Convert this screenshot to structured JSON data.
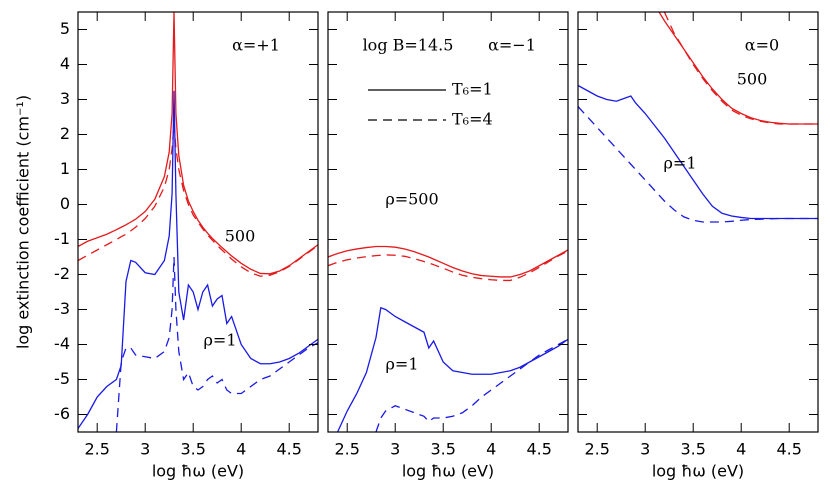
{
  "chart_data": [
    {
      "type": "line",
      "ylabel": "log extinction coefficient (cm⁻¹)",
      "xlabel": "log ħω (eV)",
      "xlim": [
        2.3,
        4.8
      ],
      "ylim": [
        -6.5,
        5.5
      ],
      "xticks": [
        2.5,
        3,
        3.5,
        4,
        4.5
      ],
      "yticks": [
        -6,
        -5,
        -4,
        -3,
        -2,
        -1,
        0,
        1,
        2,
        3,
        4,
        5
      ],
      "annotations": [
        "α=+1",
        "500",
        "ρ=1"
      ],
      "x": [
        2.3,
        2.4,
        2.5,
        2.6,
        2.7,
        2.75,
        2.8,
        2.85,
        2.9,
        3.0,
        3.1,
        3.2,
        3.25,
        3.28,
        3.3,
        3.32,
        3.35,
        3.4,
        3.45,
        3.5,
        3.55,
        3.6,
        3.65,
        3.7,
        3.75,
        3.8,
        3.85,
        3.9,
        4.0,
        4.1,
        4.2,
        4.3,
        4.4,
        4.5,
        4.6,
        4.7,
        4.8
      ],
      "series": [
        {
          "color": "#e41a1c",
          "dash": false,
          "values": [
            -1.2,
            -1.05,
            -0.95,
            -0.85,
            -0.72,
            -0.65,
            -0.58,
            -0.5,
            -0.42,
            -0.2,
            0.15,
            0.8,
            1.5,
            2.6,
            5.5,
            2.6,
            1.4,
            0.55,
            0.1,
            -0.2,
            -0.45,
            -0.65,
            -0.82,
            -0.97,
            -1.1,
            -1.23,
            -1.35,
            -1.47,
            -1.68,
            -1.85,
            -1.97,
            -1.98,
            -1.9,
            -1.75,
            -1.55,
            -1.35,
            -1.15
          ]
        },
        {
          "color": "#e41a1c",
          "dash": true,
          "values": [
            -1.6,
            -1.45,
            -1.3,
            -1.15,
            -1.0,
            -0.92,
            -0.85,
            -0.75,
            -0.65,
            -0.4,
            -0.05,
            0.5,
            1.0,
            1.6,
            2.3,
            1.6,
            1.0,
            0.4,
            0.0,
            -0.3,
            -0.5,
            -0.7,
            -0.87,
            -1.02,
            -1.17,
            -1.3,
            -1.43,
            -1.56,
            -1.78,
            -1.95,
            -2.05,
            -2.02,
            -1.92,
            -1.77,
            -1.57,
            -1.37,
            -1.17
          ]
        },
        {
          "color": "#1a1ae6",
          "dash": false,
          "values": [
            -6.4,
            -6.0,
            -5.5,
            -5.2,
            -5.0,
            -4.6,
            -2.2,
            -1.6,
            -1.65,
            -1.95,
            -2.0,
            -1.6,
            -0.9,
            0.3,
            3.25,
            0.3,
            -2.5,
            -3.3,
            -2.3,
            -2.5,
            -3.0,
            -2.5,
            -2.3,
            -2.9,
            -2.7,
            -2.6,
            -3.4,
            -3.2,
            -4.0,
            -4.4,
            -4.55,
            -4.55,
            -4.5,
            -4.4,
            -4.25,
            -4.05,
            -3.85
          ]
        },
        {
          "color": "#1a1ae6",
          "dash": true,
          "values": [
            null,
            null,
            null,
            null,
            -6.5,
            -4.5,
            -4.1,
            -4.1,
            -4.3,
            -4.35,
            -4.4,
            -4.2,
            -3.8,
            -3.0,
            -1.5,
            -3.0,
            -4.2,
            -5.0,
            -4.8,
            -5.2,
            -5.3,
            -5.2,
            -5.0,
            -4.9,
            -5.1,
            -5.0,
            -5.3,
            -5.4,
            -5.4,
            -5.2,
            -5.0,
            -4.9,
            -4.7,
            -4.5,
            -4.3,
            -4.1,
            -3.95
          ]
        }
      ]
    },
    {
      "type": "line",
      "xlabel": "log ħω (eV)",
      "xlim": [
        2.3,
        4.8
      ],
      "ylim": [
        -6.5,
        5.5
      ],
      "xticks": [
        2.5,
        3,
        3.5,
        4,
        4.5
      ],
      "annotations": [
        "log B=14.5",
        "α=−1",
        "ρ=500",
        "ρ=1"
      ],
      "legend": [
        {
          "label": "T₆=1",
          "dash": false
        },
        {
          "label": "T₆=4",
          "dash": true
        }
      ],
      "x": [
        2.3,
        2.4,
        2.5,
        2.6,
        2.7,
        2.8,
        2.85,
        2.9,
        3.0,
        3.1,
        3.2,
        3.3,
        3.35,
        3.4,
        3.5,
        3.6,
        3.7,
        3.8,
        3.9,
        4.0,
        4.1,
        4.2,
        4.3,
        4.4,
        4.5,
        4.6,
        4.7,
        4.8
      ],
      "series": [
        {
          "color": "#e41a1c",
          "dash": false,
          "values": [
            -1.5,
            -1.4,
            -1.32,
            -1.27,
            -1.23,
            -1.2,
            -1.2,
            -1.2,
            -1.22,
            -1.27,
            -1.35,
            -1.45,
            -1.5,
            -1.56,
            -1.68,
            -1.8,
            -1.9,
            -1.98,
            -2.03,
            -2.05,
            -2.07,
            -2.07,
            -2.0,
            -1.9,
            -1.75,
            -1.6,
            -1.45,
            -1.3
          ]
        },
        {
          "color": "#e41a1c",
          "dash": true,
          "values": [
            -1.75,
            -1.65,
            -1.58,
            -1.53,
            -1.49,
            -1.46,
            -1.45,
            -1.44,
            -1.45,
            -1.48,
            -1.55,
            -1.63,
            -1.67,
            -1.72,
            -1.82,
            -1.93,
            -2.02,
            -2.08,
            -2.12,
            -2.15,
            -2.17,
            -2.17,
            -2.08,
            -1.95,
            -1.8,
            -1.63,
            -1.47,
            -1.33
          ]
        },
        {
          "color": "#1a1ae6",
          "dash": false,
          "values": [
            null,
            -6.5,
            -5.9,
            -5.4,
            -4.8,
            -3.8,
            -2.95,
            -3.0,
            -3.2,
            -3.35,
            -3.5,
            -3.65,
            -4.1,
            -3.9,
            -4.5,
            -4.75,
            -4.8,
            -4.85,
            -4.85,
            -4.85,
            -4.8,
            -4.75,
            -4.65,
            -4.5,
            -4.35,
            -4.2,
            -4.05,
            -3.85
          ]
        },
        {
          "color": "#1a1ae6",
          "dash": true,
          "values": [
            null,
            null,
            null,
            null,
            null,
            -6.5,
            -6.1,
            -5.9,
            -5.75,
            -5.85,
            -5.95,
            -6.05,
            -6.2,
            -6.1,
            -6.1,
            -6.05,
            -5.95,
            -5.75,
            -5.5,
            -5.3,
            -5.1,
            -4.9,
            -4.7,
            -4.5,
            -4.3,
            -4.15,
            -4.0,
            -3.85
          ]
        }
      ]
    },
    {
      "type": "line",
      "xlabel": "log ħω (eV)",
      "xlim": [
        2.3,
        4.8
      ],
      "ylim": [
        -6.5,
        5.5
      ],
      "xticks": [
        2.5,
        3,
        3.5,
        4,
        4.5
      ],
      "annotations": [
        "α=0",
        "500",
        "ρ=1"
      ],
      "x": [
        2.3,
        2.4,
        2.5,
        2.6,
        2.7,
        2.8,
        2.85,
        2.9,
        3.0,
        3.1,
        3.2,
        3.3,
        3.4,
        3.5,
        3.6,
        3.7,
        3.8,
        3.9,
        4.0,
        4.1,
        4.2,
        4.3,
        4.4,
        4.5,
        4.6,
        4.7,
        4.8
      ],
      "series": [
        {
          "color": "#e41a1c",
          "dash": false,
          "values": [
            null,
            null,
            null,
            null,
            null,
            null,
            null,
            null,
            null,
            5.7,
            5.25,
            4.85,
            4.45,
            4.05,
            3.65,
            3.3,
            3.0,
            2.75,
            2.6,
            2.48,
            2.4,
            2.35,
            2.32,
            2.3,
            2.3,
            2.3,
            2.3
          ]
        },
        {
          "color": "#e41a1c",
          "dash": true,
          "values": [
            null,
            null,
            null,
            null,
            null,
            null,
            null,
            null,
            null,
            null,
            5.5,
            4.9,
            4.45,
            4.0,
            3.6,
            3.25,
            2.95,
            2.7,
            2.55,
            2.45,
            2.38,
            2.33,
            2.3,
            2.3,
            2.3,
            2.3,
            2.3
          ]
        },
        {
          "color": "#1a1ae6",
          "dash": false,
          "values": [
            3.4,
            3.25,
            3.1,
            3.0,
            2.95,
            3.05,
            3.1,
            2.9,
            2.6,
            2.25,
            1.9,
            1.5,
            1.1,
            0.7,
            0.3,
            -0.05,
            -0.25,
            -0.33,
            -0.37,
            -0.4,
            -0.4,
            -0.4,
            -0.4,
            -0.4,
            -0.4,
            -0.4,
            -0.4
          ]
        },
        {
          "color": "#1a1ae6",
          "dash": true,
          "values": [
            2.8,
            2.5,
            2.2,
            1.9,
            1.6,
            1.3,
            1.15,
            1.0,
            0.7,
            0.4,
            0.1,
            -0.15,
            -0.35,
            -0.45,
            -0.5,
            -0.5,
            -0.5,
            -0.48,
            -0.45,
            -0.43,
            -0.42,
            -0.41,
            -0.4,
            -0.4,
            -0.4,
            -0.4,
            -0.4
          ]
        }
      ]
    }
  ]
}
